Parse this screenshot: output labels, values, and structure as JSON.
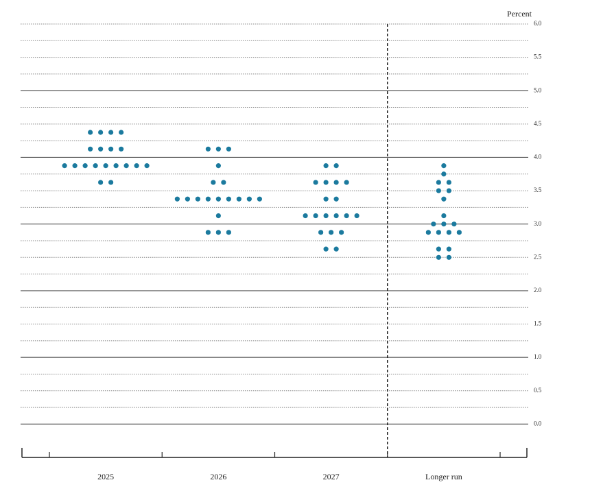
{
  "chart_data": {
    "type": "dot",
    "y_label": "Percent",
    "categories": [
      "2025",
      "2026",
      "2027",
      "Longer run"
    ],
    "dots": [
      [
        4.375,
        4.375,
        4.375,
        4.375,
        4.125,
        4.125,
        4.125,
        4.125,
        3.875,
        3.875,
        3.875,
        3.875,
        3.875,
        3.875,
        3.875,
        3.875,
        3.875,
        3.625,
        3.625
      ],
      [
        4.125,
        4.125,
        4.125,
        3.875,
        3.625,
        3.625,
        3.375,
        3.375,
        3.375,
        3.375,
        3.375,
        3.375,
        3.375,
        3.375,
        3.375,
        3.125,
        2.875,
        2.875,
        2.875
      ],
      [
        3.875,
        3.875,
        3.625,
        3.625,
        3.625,
        3.625,
        3.375,
        3.375,
        3.125,
        3.125,
        3.125,
        3.125,
        3.125,
        3.125,
        2.875,
        2.875,
        2.875,
        2.625,
        2.625
      ],
      [
        3.875,
        3.75,
        3.625,
        3.625,
        3.5,
        3.5,
        3.375,
        3.125,
        3,
        3,
        3,
        2.875,
        2.875,
        2.875,
        2.875,
        2.625,
        2.625,
        2.5,
        2.5
      ]
    ],
    "color": "#1b7a9e",
    "ylim": [
      -0.5,
      6.0
    ],
    "yticks": [
      {
        "value": 0,
        "label": "0.0"
      },
      {
        "value": 0.5,
        "label": "0.5"
      },
      {
        "value": 1,
        "label": "1.0"
      },
      {
        "value": 1.5,
        "label": "1.5"
      },
      {
        "value": 2,
        "label": "2.0"
      },
      {
        "value": 2.5,
        "label": "2.5"
      },
      {
        "value": 3,
        "label": "3.0"
      },
      {
        "value": 3.5,
        "label": "3.5"
      },
      {
        "value": 4,
        "label": "4.0"
      },
      {
        "value": 4.5,
        "label": "4.5"
      },
      {
        "value": 5,
        "label": "5.0"
      },
      {
        "value": 5.5,
        "label": "5.5"
      },
      {
        "value": 6,
        "label": "6.0"
      }
    ],
    "minor_yticks": [
      0.25,
      0.75,
      1.25,
      1.75,
      2.25,
      2.75,
      3.25,
      3.75,
      4.25,
      4.75,
      5.25,
      5.75
    ],
    "grid": true
  }
}
